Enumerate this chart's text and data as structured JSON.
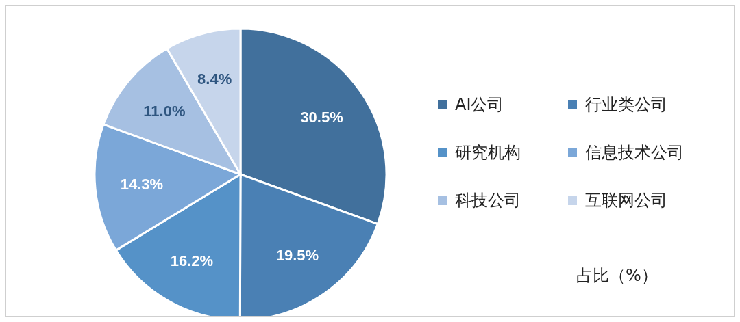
{
  "chart_data": {
    "type": "pie",
    "title": "占比（%）",
    "categories": [
      "AI公司",
      "行业类公司",
      "研究机构",
      "信息技术公司",
      "科技公司",
      "互联网公司"
    ],
    "values": [
      30.5,
      19.5,
      16.2,
      14.3,
      11.0,
      8.4
    ],
    "value_labels": [
      "30.5%",
      "19.5%",
      "16.2%",
      "14.3%",
      "11.0%",
      "8.4%"
    ],
    "colors": [
      "#41709c",
      "#4a80b4",
      "#5592c8",
      "#7ba7d8",
      "#a6c0e2",
      "#c6d5eb"
    ],
    "legend": "right"
  }
}
